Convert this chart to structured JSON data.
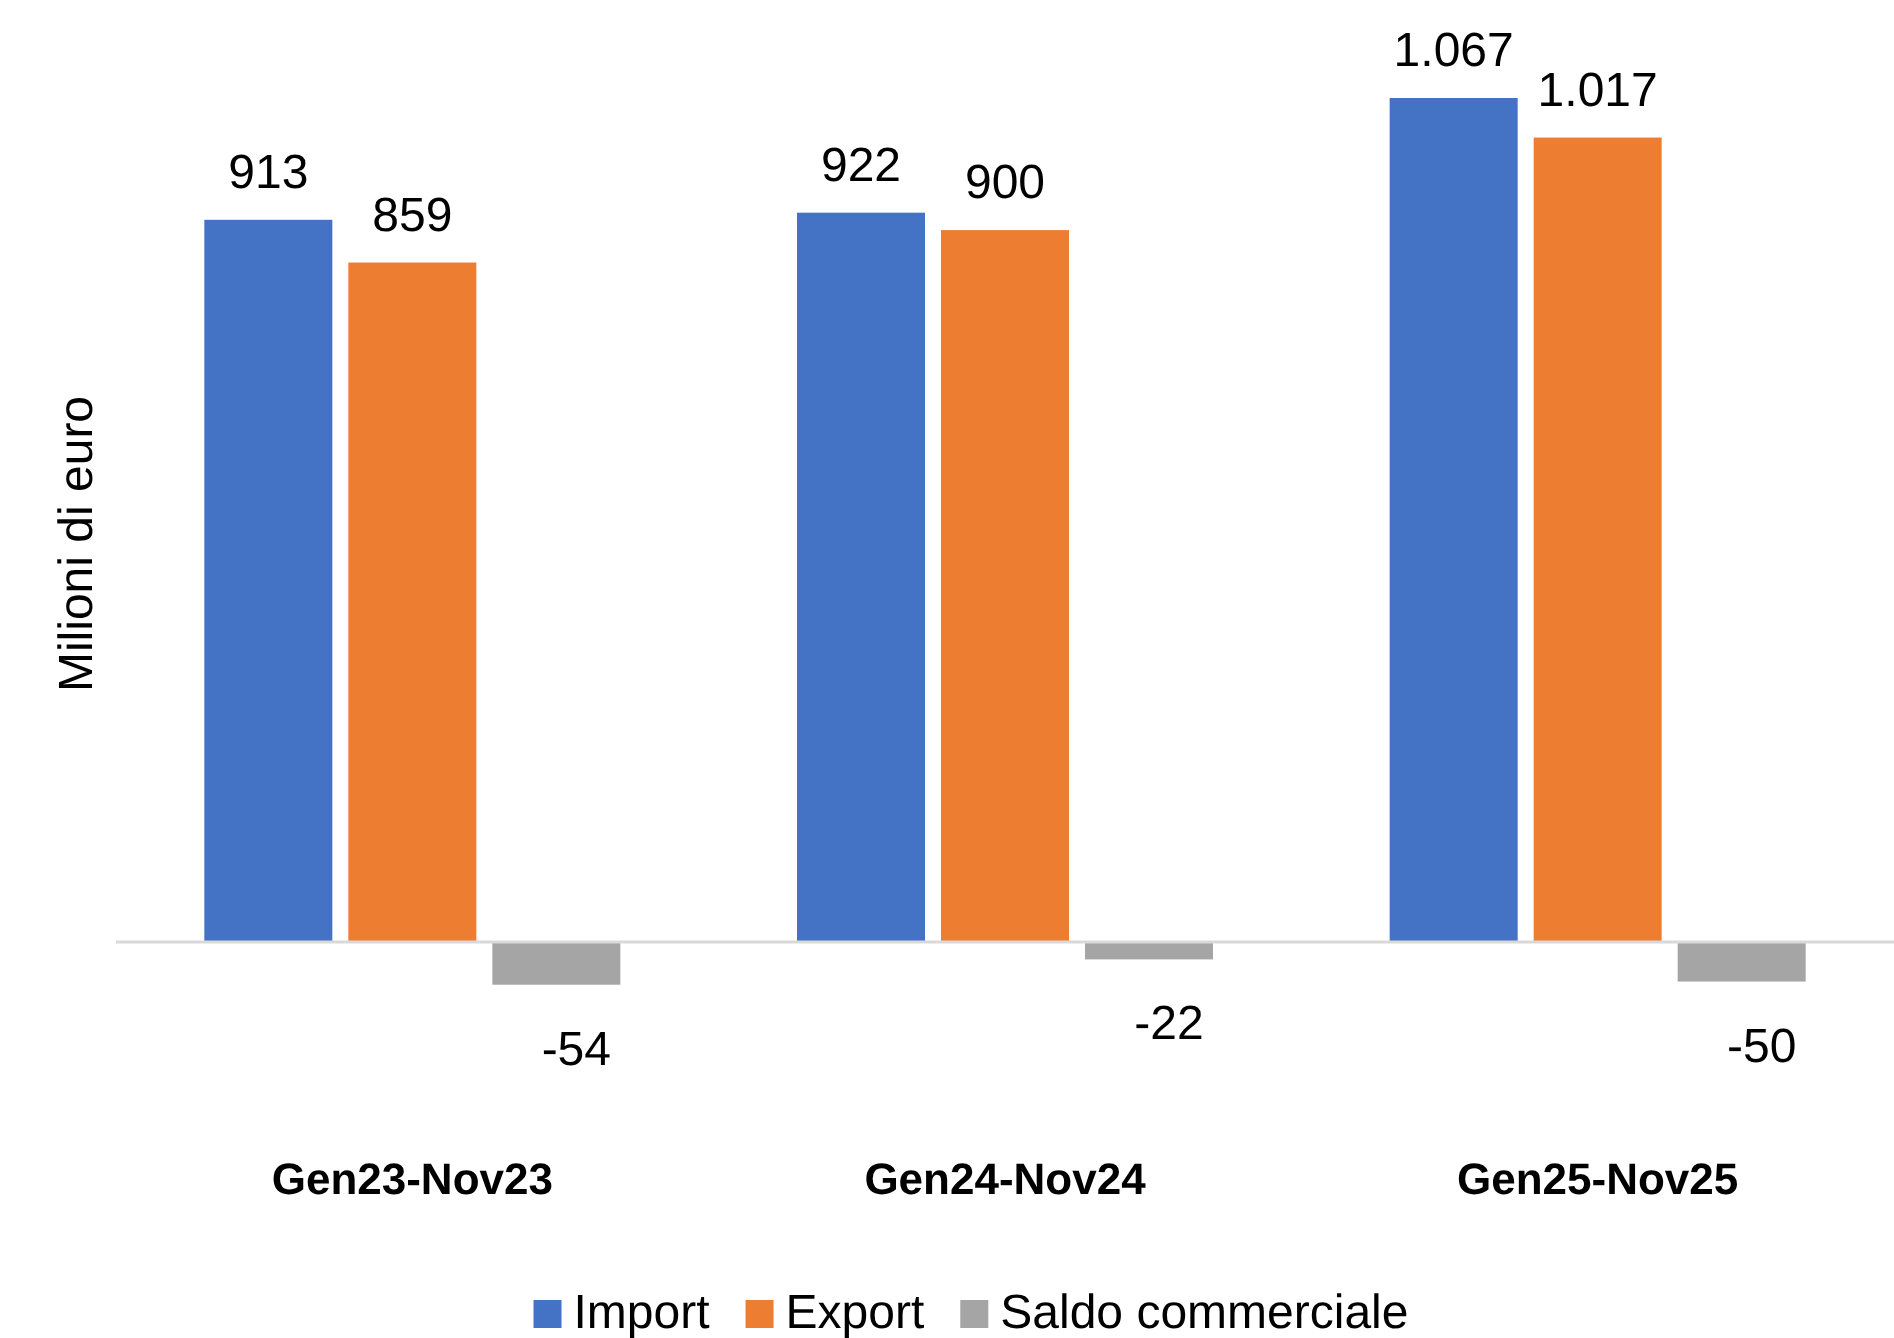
{
  "chart_data": {
    "type": "bar",
    "ylabel": "Milioni di euro",
    "categories": [
      "Gen23-Nov23",
      "Gen24-Nov24",
      "Gen25-Nov25"
    ],
    "series": [
      {
        "name": "Import",
        "color": "#4472c4",
        "values": [
          913,
          922,
          1067
        ],
        "value_labels": [
          "913",
          "922",
          "1.067"
        ]
      },
      {
        "name": "Export",
        "color": "#ed7d31",
        "values": [
          859,
          900,
          1017
        ],
        "value_labels": [
          "859",
          "900",
          "1.017"
        ]
      },
      {
        "name": "Saldo commerciale",
        "color": "#a5a5a5",
        "values": [
          -54,
          -22,
          -50
        ],
        "value_labels": [
          "-54",
          "-22",
          "-50"
        ]
      }
    ],
    "legend": "bottom"
  }
}
